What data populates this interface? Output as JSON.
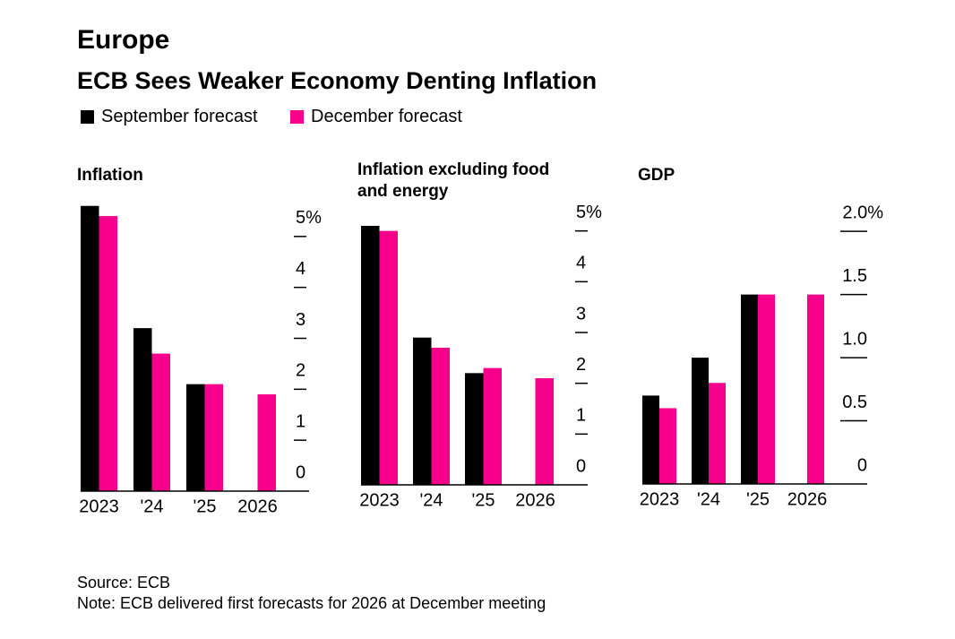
{
  "header": {
    "kicker": "Europe",
    "title": "ECB Sees Weaker Economy Denting Inflation"
  },
  "legend": [
    {
      "name": "September forecast",
      "color": "#000000"
    },
    {
      "name": "December forecast",
      "color": "#f7008c"
    }
  ],
  "chart_data": [
    {
      "type": "bar",
      "title": "Inflation",
      "categories": [
        "2023",
        "'24",
        "'25",
        "2026"
      ],
      "series": [
        {
          "name": "September forecast",
          "color": "#000000",
          "values": [
            5.6,
            3.2,
            2.1,
            null
          ]
        },
        {
          "name": "December forecast",
          "color": "#f7008c",
          "values": [
            5.4,
            2.7,
            2.1,
            1.9
          ]
        }
      ],
      "ylim": [
        0,
        6
      ],
      "yticks": [
        0,
        1,
        2,
        3,
        4,
        {
          "value": 5,
          "label": "5%"
        }
      ]
    },
    {
      "type": "bar",
      "title": "Inflation excluding food and energy",
      "categories": [
        "2023",
        "'24",
        "'25",
        "2026"
      ],
      "series": [
        {
          "name": "September forecast",
          "color": "#000000",
          "values": [
            5.1,
            2.9,
            2.2,
            null
          ]
        },
        {
          "name": "December forecast",
          "color": "#f7008c",
          "values": [
            5.0,
            2.7,
            2.3,
            2.1
          ]
        }
      ],
      "ylim": [
        0,
        6
      ],
      "yticks": [
        0,
        1,
        2,
        3,
        4,
        {
          "value": 5,
          "label": "5%"
        }
      ]
    },
    {
      "type": "bar",
      "title": "GDP",
      "categories": [
        "2023",
        "'24",
        "'25",
        "2026"
      ],
      "series": [
        {
          "name": "September forecast",
          "color": "#000000",
          "values": [
            0.7,
            1.0,
            1.5,
            null
          ]
        },
        {
          "name": "December forecast",
          "color": "#f7008c",
          "values": [
            0.6,
            0.8,
            1.5,
            1.5
          ]
        }
      ],
      "ylim": [
        0,
        2.2
      ],
      "yticks": [
        0,
        0.5,
        {
          "value": 1,
          "label": "1.0"
        },
        1.5,
        {
          "value": 2,
          "label": "2.0%"
        }
      ]
    }
  ],
  "footer": {
    "source": "Source: ECB",
    "note": "Note: ECB delivered first forecasts for 2026 at December meeting"
  }
}
